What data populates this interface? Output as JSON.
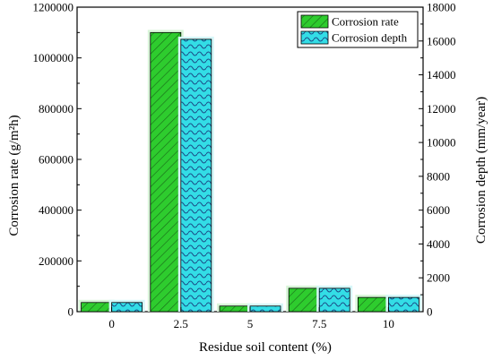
{
  "chart_data": {
    "type": "bar",
    "title": "",
    "categories": [
      "0",
      "2.5",
      "5",
      "7.5",
      "10"
    ],
    "xlabel": "Residue soil content (%)",
    "ylabel_left": "Corrosion rate (g/m²h)",
    "ylabel_right": "Corrosion depth (mm/year)",
    "ylim_left": [
      0,
      1200000
    ],
    "ylim_right": [
      0,
      18000
    ],
    "yticks_left": [
      "0",
      "200000",
      "400000",
      "600000",
      "800000",
      "1000000",
      "1200000"
    ],
    "yticks_right": [
      "0",
      "2000",
      "4000",
      "6000",
      "8000",
      "10000",
      "12000",
      "14000",
      "16000",
      "18000"
    ],
    "legend_position": "top-right",
    "series": [
      {
        "name": "Corrosion rate",
        "axis": "left",
        "color": "#2ecc2e",
        "pattern": "diagonal-hatch",
        "values": [
          36000,
          1100000,
          22000,
          92000,
          56000
        ]
      },
      {
        "name": "Corrosion depth",
        "axis": "right",
        "color": "#33dde6",
        "pattern": "wave",
        "values": [
          540,
          16100,
          330,
          1380,
          840
        ]
      }
    ]
  }
}
